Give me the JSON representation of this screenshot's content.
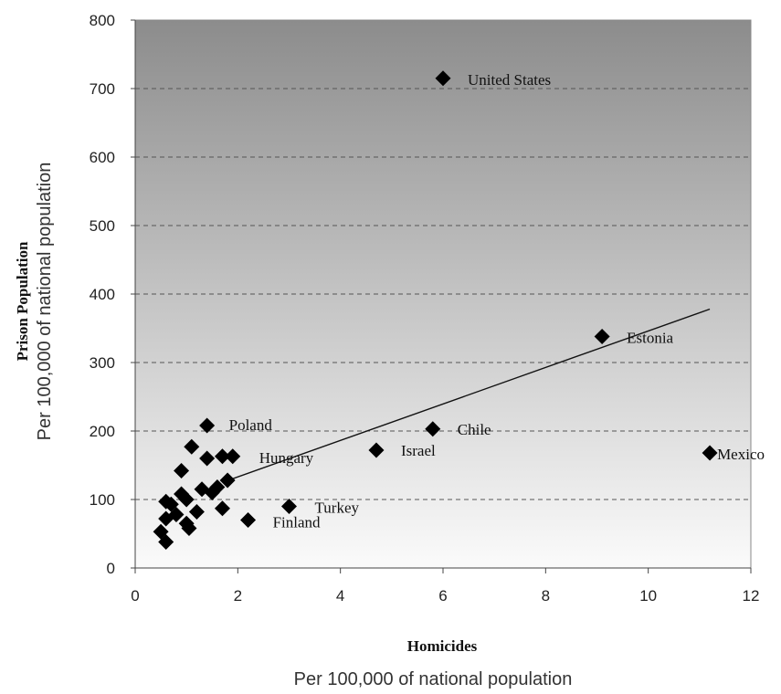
{
  "chart_data": {
    "type": "scatter",
    "title": "",
    "xlabel": "Homicides",
    "xlabel_sub": "Per 100,000 of national population",
    "ylabel": "Prison Population",
    "ylabel_sub": "Per 100,000 of national population",
    "xlim": [
      0,
      12
    ],
    "ylim": [
      0,
      800
    ],
    "xticks": [
      0,
      2,
      4,
      6,
      8,
      10,
      12
    ],
    "yticks": [
      0,
      100,
      200,
      300,
      400,
      500,
      600,
      700,
      800
    ],
    "grid": "horizontal dashed",
    "background": "gradient dark-gray top to light-gray bottom",
    "marker": "diamond",
    "marker_color": "#000000",
    "points": [
      {
        "x": 6.0,
        "y": 715,
        "label": "United States"
      },
      {
        "x": 9.1,
        "y": 338,
        "label": "Estonia"
      },
      {
        "x": 11.2,
        "y": 168,
        "label": "Mexico"
      },
      {
        "x": 5.8,
        "y": 203,
        "label": "Chile"
      },
      {
        "x": 4.7,
        "y": 172,
        "label": "Israel"
      },
      {
        "x": 3.0,
        "y": 90,
        "label": "Turkey"
      },
      {
        "x": 2.2,
        "y": 70,
        "label": "Finland"
      },
      {
        "x": 1.4,
        "y": 208,
        "label": "Poland"
      },
      {
        "x": 1.9,
        "y": 163,
        "label": "Hungary"
      },
      {
        "x": 1.1,
        "y": 177
      },
      {
        "x": 1.4,
        "y": 160
      },
      {
        "x": 1.7,
        "y": 163
      },
      {
        "x": 0.9,
        "y": 142
      },
      {
        "x": 1.8,
        "y": 128
      },
      {
        "x": 1.3,
        "y": 115
      },
      {
        "x": 1.5,
        "y": 110
      },
      {
        "x": 1.6,
        "y": 118
      },
      {
        "x": 0.9,
        "y": 108
      },
      {
        "x": 1.0,
        "y": 100
      },
      {
        "x": 0.6,
        "y": 97
      },
      {
        "x": 0.7,
        "y": 93
      },
      {
        "x": 1.7,
        "y": 87
      },
      {
        "x": 1.2,
        "y": 82
      },
      {
        "x": 0.8,
        "y": 78
      },
      {
        "x": 0.6,
        "y": 72
      },
      {
        "x": 1.0,
        "y": 65
      },
      {
        "x": 1.05,
        "y": 58
      },
      {
        "x": 0.5,
        "y": 53
      },
      {
        "x": 0.6,
        "y": 38
      }
    ],
    "trendline": {
      "from": [
        1.7,
        125
      ],
      "to": [
        11.2,
        378
      ]
    }
  }
}
